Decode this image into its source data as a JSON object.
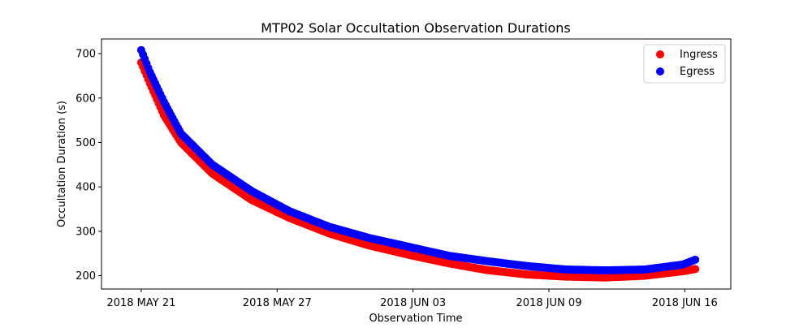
{
  "chart_data": {
    "type": "scatter",
    "title": "MTP02 Solar Occultation Observation Durations",
    "xlabel": "Observation Time",
    "ylabel": "Occultation Duration (s)",
    "x_unit": "days since 2018 MAY 21",
    "xlim": [
      -1.9,
      28.2
    ],
    "ylim": [
      170,
      733
    ],
    "x_ticks": [
      {
        "value": 0,
        "label": "2018 MAY 21"
      },
      {
        "value": 6.5,
        "label": "2018 MAY 27"
      },
      {
        "value": 13,
        "label": "2018 JUN 03"
      },
      {
        "value": 19.5,
        "label": "2018 JUN 09"
      },
      {
        "value": 26,
        "label": "2018 JUN 16"
      }
    ],
    "y_ticks": [
      200,
      300,
      400,
      500,
      600,
      700
    ],
    "grid": false,
    "legend_position": "top-right",
    "series": [
      {
        "name": "Ingress",
        "color": "#ff0000",
        "key_points": [
          [
            0,
            680
          ],
          [
            0.4,
            635
          ],
          [
            1.1,
            560
          ],
          [
            1.9,
            500
          ],
          [
            3.4,
            430
          ],
          [
            5.3,
            370
          ],
          [
            7.1,
            330
          ],
          [
            9.0,
            295
          ],
          [
            10.9,
            268
          ],
          [
            12.8,
            247
          ],
          [
            14.7,
            228
          ],
          [
            16.5,
            213
          ],
          [
            18.4,
            203
          ],
          [
            20.3,
            198
          ],
          [
            22.2,
            196
          ],
          [
            24.1,
            200
          ],
          [
            25.9,
            210
          ],
          [
            26.5,
            215
          ]
        ]
      },
      {
        "name": "Egress",
        "color": "#0000ff",
        "key_points": [
          [
            0,
            708
          ],
          [
            0.4,
            660
          ],
          [
            1.1,
            590
          ],
          [
            1.9,
            520
          ],
          [
            3.4,
            450
          ],
          [
            5.3,
            390
          ],
          [
            7.1,
            345
          ],
          [
            9.0,
            310
          ],
          [
            10.9,
            285
          ],
          [
            12.8,
            265
          ],
          [
            14.7,
            245
          ],
          [
            16.5,
            233
          ],
          [
            18.4,
            222
          ],
          [
            20.3,
            214
          ],
          [
            22.2,
            212
          ],
          [
            24.1,
            214
          ],
          [
            25.9,
            225
          ],
          [
            26.5,
            236
          ]
        ]
      }
    ],
    "points_per_day": 12
  }
}
